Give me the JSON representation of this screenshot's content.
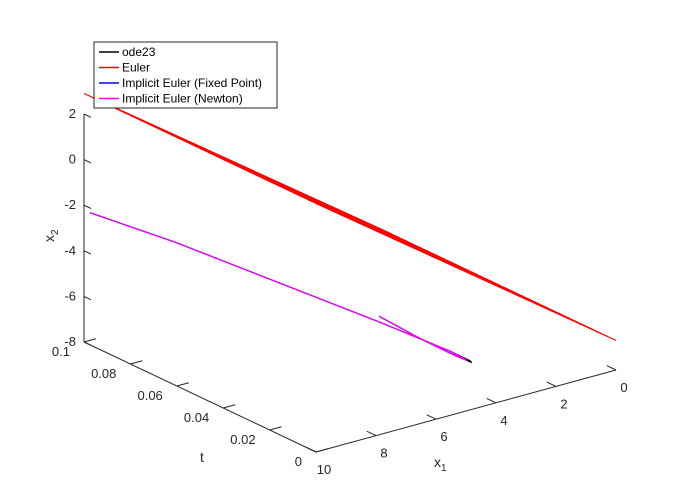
{
  "chart_data": {
    "type": "line",
    "projection": "3d",
    "title": "",
    "axes": {
      "x": {
        "label": "x",
        "subscript": "1",
        "ticks": [
          "0",
          "2",
          "4",
          "6",
          "8",
          "10"
        ],
        "range": [
          0,
          10
        ]
      },
      "t": {
        "label": "t",
        "ticks": [
          "0",
          "0.02",
          "0.04",
          "0.06",
          "0.08",
          "0.1"
        ],
        "range": [
          0,
          0.1
        ]
      },
      "y": {
        "label": "x",
        "subscript": "2",
        "ticks": [
          "-8",
          "-6",
          "-4",
          "-2",
          "0",
          "2"
        ],
        "range": [
          -8,
          2
        ]
      }
    },
    "grid": false,
    "legend": {
      "placement": "top-left",
      "entries": [
        {
          "label": "ode23",
          "color": "#000000"
        },
        {
          "label": "Euler",
          "color": "#ff0000"
        },
        {
          "label": "Implicit Euler (Fixed Point)",
          "color": "#0000ff"
        },
        {
          "label": "Implicit Euler (Newton)",
          "color": "#ff00ff"
        }
      ]
    },
    "series": [
      {
        "name": "Euler",
        "color": "#ff0000",
        "note_points": "[x1, t, x2]",
        "lines": [
          {
            "t": 0.1,
            "from": [
              0,
              -6.7
            ],
            "to": [
              10,
              2.9
            ]
          },
          {
            "t": 0.0967,
            "from": [
              0,
              -6.7
            ],
            "to": [
              10,
              2.9
            ]
          },
          {
            "t": 0.0933,
            "from": [
              0,
              -6.7
            ],
            "to": [
              10,
              2.9
            ]
          },
          {
            "t": 0.09,
            "from": [
              0,
              -6.7
            ],
            "to": [
              10,
              2.9
            ]
          },
          {
            "t": 0.0867,
            "from": [
              0,
              -6.7
            ],
            "to": [
              10,
              2.9
            ]
          },
          {
            "t": 0.0833,
            "from": [
              0,
              -6.7
            ],
            "to": [
              10,
              2.9
            ]
          },
          {
            "t": 0.08,
            "from": [
              0,
              -6.7
            ],
            "to": [
              10,
              2.9
            ]
          },
          {
            "t": 0.0767,
            "from": [
              0,
              -6.7
            ],
            "to": [
              10,
              2.9
            ]
          },
          {
            "t": 0.0733,
            "from": [
              0,
              -6.7
            ],
            "to": [
              10,
              2.9
            ]
          },
          {
            "t": 0.07,
            "from": [
              0,
              -6.7
            ],
            "to": [
              10,
              2.9
            ]
          },
          {
            "t": 0.0667,
            "from": [
              0,
              -6.7
            ],
            "to": [
              10,
              2.9
            ]
          },
          {
            "t": 0.0633,
            "from": [
              0,
              -6.7
            ],
            "to": [
              10,
              2.9
            ]
          },
          {
            "t": 0.06,
            "from": [
              0,
              -6.7
            ],
            "to": [
              10,
              2.9
            ]
          },
          {
            "t": 0.0567,
            "from": [
              0,
              -6.7
            ],
            "to": [
              10,
              2.9
            ]
          },
          {
            "t": 0.0533,
            "from": [
              0,
              -6.7
            ],
            "to": [
              10,
              2.9
            ]
          },
          {
            "t": 0.05,
            "from": [
              0,
              -6.7
            ],
            "to": [
              10,
              2.9
            ]
          },
          {
            "t": 0.0467,
            "from": [
              0,
              -6.7
            ],
            "to": [
              10,
              2.9
            ]
          },
          {
            "t": 0.0433,
            "from": [
              0,
              -6.7
            ],
            "to": [
              10,
              2.9
            ]
          },
          {
            "t": 0.04,
            "from": [
              0,
              -6.7
            ],
            "to": [
              10,
              2.9
            ]
          },
          {
            "t": 0.0367,
            "from": [
              0,
              -6.7
            ],
            "to": [
              10,
              2.9
            ]
          },
          {
            "t": 0.0333,
            "from": [
              0,
              -6.7
            ],
            "to": [
              10,
              2.9
            ]
          },
          {
            "t": 0.03,
            "from": [
              0,
              -6.7
            ],
            "to": [
              10,
              2.9
            ]
          },
          {
            "t": 0.0267,
            "from": [
              0,
              -6.7
            ],
            "to": [
              10,
              2.9
            ]
          },
          {
            "t": 0.0233,
            "from": [
              0,
              -6.7
            ],
            "to": [
              10,
              2.9
            ]
          },
          {
            "t": 0.02,
            "from": [
              0,
              -6.7
            ],
            "to": [
              10,
              2.9
            ]
          },
          {
            "t": 0.0167,
            "from": [
              0,
              -6.7
            ],
            "to": [
              10,
              2.9
            ]
          },
          {
            "t": 0.0133,
            "from": [
              0,
              -6.7
            ],
            "to": [
              10,
              2.9
            ]
          },
          {
            "t": 0.01,
            "from": [
              0,
              -6.7
            ],
            "to": [
              10,
              2.9
            ]
          },
          {
            "t": 0.0067,
            "from": [
              0,
              -6.7
            ],
            "to": [
              10,
              2.9
            ]
          },
          {
            "t": 0.0033,
            "from": [
              0,
              -6.7
            ],
            "to": [
              10,
              2.9
            ]
          },
          {
            "t": 0.0,
            "from": [
              0,
              -6.7
            ],
            "to": [
              10,
              2.9
            ]
          }
        ]
      },
      {
        "name": "ode23",
        "color": "#000000",
        "points": [
          [
            0.2,
            0.1,
            -2.4
          ],
          [
            1.5,
            0.08,
            -3.2
          ],
          [
            3.0,
            0.055,
            -4.3
          ],
          [
            4.5,
            0.03,
            -5.4
          ],
          [
            5.4,
            0.012,
            -6.1
          ],
          [
            5.6,
            0.006,
            -6.3
          ],
          [
            5.5,
            0.004,
            -6.25
          ],
          [
            4.6,
            0.002,
            -5.4
          ],
          [
            3.5,
            0.001,
            -4.3
          ],
          [
            2.1,
            0.0,
            -2.8
          ]
        ]
      },
      {
        "name": "Implicit Euler (Fixed Point)",
        "color": "#0000ff",
        "points": [
          [
            0.2,
            0.1,
            -2.4
          ],
          [
            1.5,
            0.08,
            -3.2
          ],
          [
            3.0,
            0.055,
            -4.3
          ],
          [
            4.5,
            0.03,
            -5.4
          ],
          [
            5.4,
            0.012,
            -6.1
          ],
          [
            5.5,
            0.006,
            -6.25
          ],
          [
            4.9,
            0.003,
            -5.7
          ],
          [
            3.6,
            0.001,
            -4.4
          ],
          [
            2.1,
            0.0,
            -2.8
          ]
        ]
      },
      {
        "name": "Implicit Euler (Newton)",
        "color": "#ff00ff",
        "points": [
          [
            0.2,
            0.1,
            -2.4
          ],
          [
            1.5,
            0.08,
            -3.2
          ],
          [
            3.0,
            0.055,
            -4.3
          ],
          [
            4.5,
            0.03,
            -5.4
          ],
          [
            5.4,
            0.012,
            -6.1
          ],
          [
            5.5,
            0.006,
            -6.25
          ],
          [
            4.9,
            0.003,
            -5.7
          ],
          [
            3.6,
            0.001,
            -4.4
          ],
          [
            2.1,
            0.0,
            -2.8
          ]
        ]
      }
    ]
  }
}
